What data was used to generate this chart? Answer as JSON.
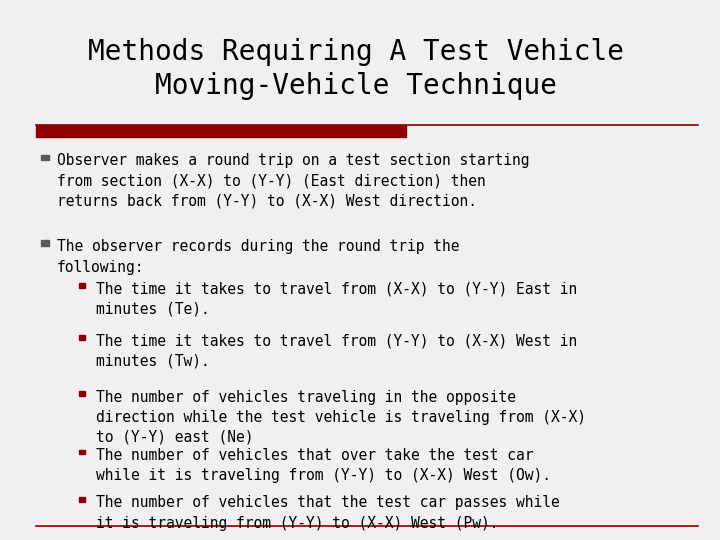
{
  "title_line1": "Methods Requiring A Test Vehicle",
  "title_line2": "Moving-Vehicle Technique",
  "background_color": "#f0f0f0",
  "title_color": "#000000",
  "bar_color": "#8B0000",
  "bullet1": "Observer makes a round trip on a test section starting\nfrom section (X-X) to (Y-Y) (East direction) then\nreturns back from (Y-Y) to (X-X) West direction.",
  "bullet2": "The observer records during the round trip the\nfollowing:",
  "sub_bullets": [
    "The time it takes to travel from (X-X) to (Y-Y) East in\nminutes (Te).",
    "The time it takes to travel from (Y-Y) to (X-X) West in\nminutes (Tw).",
    "The number of vehicles traveling in the opposite\ndirection while the test vehicle is traveling from (X-X)\nto (Y-Y) east (Ne)",
    "The number of vehicles that over take the test car\nwhile it is traveling from (Y-Y) to (X-X) West (Ow).",
    "The number of vehicles that the test car passes while\nit is traveling from (Y-Y) to (X-X) West (Pw)."
  ],
  "font_family": "monospace",
  "title_fontsize": 20,
  "bullet_fontsize": 10.5,
  "sub_bullet_fontsize": 10.5,
  "outer_bullet_color": "#5a5a5a",
  "inner_bullet_color": "#8B0000",
  "text_color": "#000000"
}
